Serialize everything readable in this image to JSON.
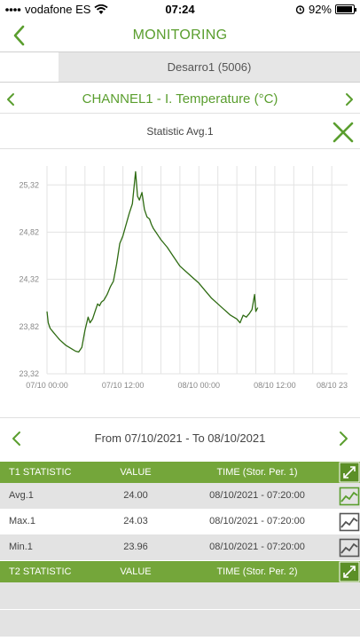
{
  "status_bar": {
    "carrier": "vodafone ES",
    "time": "07:24",
    "battery": "92%"
  },
  "header": {
    "title": "MONITORING"
  },
  "device": {
    "label": "Desarro1 (5006)"
  },
  "channel": {
    "label": "CHANNEL1   -  I. Temperature (°C)"
  },
  "statistic": {
    "label": "Statistic Avg.1"
  },
  "date_range": {
    "text": "From  07/10/2021   -   To  08/10/2021"
  },
  "t1_table": {
    "headers": [
      "T1 STATISTIC",
      "VALUE",
      "TIME (Stor. Per. 1)"
    ],
    "rows": [
      {
        "name": "Avg.1",
        "value": "24.00",
        "time": "08/10/2021 - 07:20:00"
      },
      {
        "name": "Max.1",
        "value": "24.03",
        "time": "08/10/2021 - 07:20:00"
      },
      {
        "name": "Min.1",
        "value": "23.96",
        "time": "08/10/2021 - 07:20:00"
      }
    ]
  },
  "t2_table": {
    "headers": [
      "T2 STATISTIC",
      "VALUE",
      "TIME (Stor. Per. 2)"
    ]
  },
  "colors": {
    "accent": "#5a9e2e",
    "table_header": "#74a63a",
    "line": "#2e6b12"
  },
  "chart_data": {
    "type": "line",
    "yticks": [
      "25,32",
      "24,82",
      "24,32",
      "23,82",
      "23,32"
    ],
    "ylim": [
      23.32,
      25.52
    ],
    "xticks": [
      "07/10 00:00",
      "07/10 12:00",
      "08/10 00:00",
      "08/10 12:00",
      "08/10 23"
    ],
    "xlim": [
      0,
      47.5
    ],
    "x_unit": "hours since 07/10 00:00",
    "series": [
      {
        "x": [
          0,
          0.2,
          0.5,
          1,
          1.5,
          2,
          2.5,
          3,
          3.5,
          4,
          4.5,
          5,
          5.5,
          6,
          6.5,
          6.8,
          7.2,
          7.6,
          8,
          8.3,
          8.6,
          9,
          9.5,
          10,
          10.5,
          11,
          11.5,
          12,
          12.5,
          13,
          13.5,
          14,
          14.3,
          14.6,
          15,
          15.4,
          15.8,
          16.2,
          16.5,
          16.8,
          17.2,
          17.6,
          18,
          19,
          20,
          21,
          22,
          23,
          24,
          25,
          26,
          27,
          28,
          29,
          30,
          30.5,
          31,
          31.5,
          32,
          32.4,
          32.8,
          33,
          33.3
        ],
        "y": [
          23.98,
          23.86,
          23.8,
          23.76,
          23.72,
          23.68,
          23.65,
          23.62,
          23.6,
          23.58,
          23.56,
          23.55,
          23.6,
          23.78,
          23.92,
          23.86,
          23.9,
          23.98,
          24.06,
          24.04,
          24.08,
          24.1,
          24.16,
          24.24,
          24.3,
          24.48,
          24.7,
          24.78,
          24.9,
          25.02,
          25.12,
          25.46,
          25.2,
          25.16,
          25.24,
          25.06,
          24.98,
          24.96,
          24.9,
          24.86,
          24.82,
          24.78,
          24.74,
          24.66,
          24.56,
          24.46,
          24.4,
          24.34,
          24.28,
          24.2,
          24.12,
          24.06,
          24.0,
          23.94,
          23.9,
          23.86,
          23.94,
          23.92,
          23.96,
          24.0,
          24.16,
          23.98,
          24.02
        ]
      }
    ]
  }
}
